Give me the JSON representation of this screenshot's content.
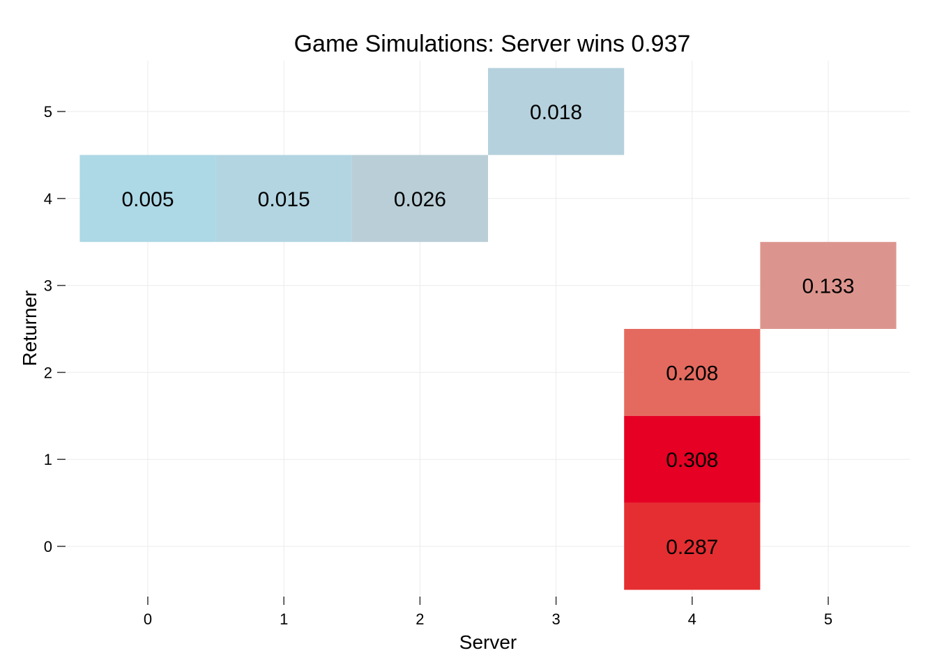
{
  "chart_data": {
    "type": "heatmap",
    "title": "Game Simulations: Server wins 0.937",
    "xlabel": "Server",
    "ylabel": "Returner",
    "x_ticks": [
      "0",
      "1",
      "2",
      "3",
      "4",
      "5"
    ],
    "y_ticks": [
      "0",
      "1",
      "2",
      "3",
      "4",
      "5"
    ],
    "xlim": [
      -0.5,
      5.6
    ],
    "ylim": [
      -0.5,
      5.5
    ],
    "grid": true,
    "colors": {
      "low": "#add8e6",
      "high": "#e60023",
      "grid": "#ebebeb"
    },
    "cells": [
      {
        "server": 0,
        "returner": 4,
        "value": 0.005,
        "label": "0.005",
        "color": "#add8e6"
      },
      {
        "server": 1,
        "returner": 4,
        "value": 0.015,
        "label": "0.015",
        "color": "#b2d5e1"
      },
      {
        "server": 2,
        "returner": 4,
        "value": 0.026,
        "label": "0.026",
        "color": "#b9ced6"
      },
      {
        "server": 3,
        "returner": 5,
        "value": 0.018,
        "label": "0.018",
        "color": "#b5d1dd"
      },
      {
        "server": 5,
        "returner": 3,
        "value": 0.133,
        "label": "0.133",
        "color": "#dc958e"
      },
      {
        "server": 4,
        "returner": 2,
        "value": 0.208,
        "label": "0.208",
        "color": "#e46a5f"
      },
      {
        "server": 4,
        "returner": 1,
        "value": 0.308,
        "label": "0.308",
        "color": "#e60023"
      },
      {
        "server": 4,
        "returner": 0,
        "value": 0.287,
        "label": "0.287",
        "color": "#e52e31"
      }
    ]
  }
}
